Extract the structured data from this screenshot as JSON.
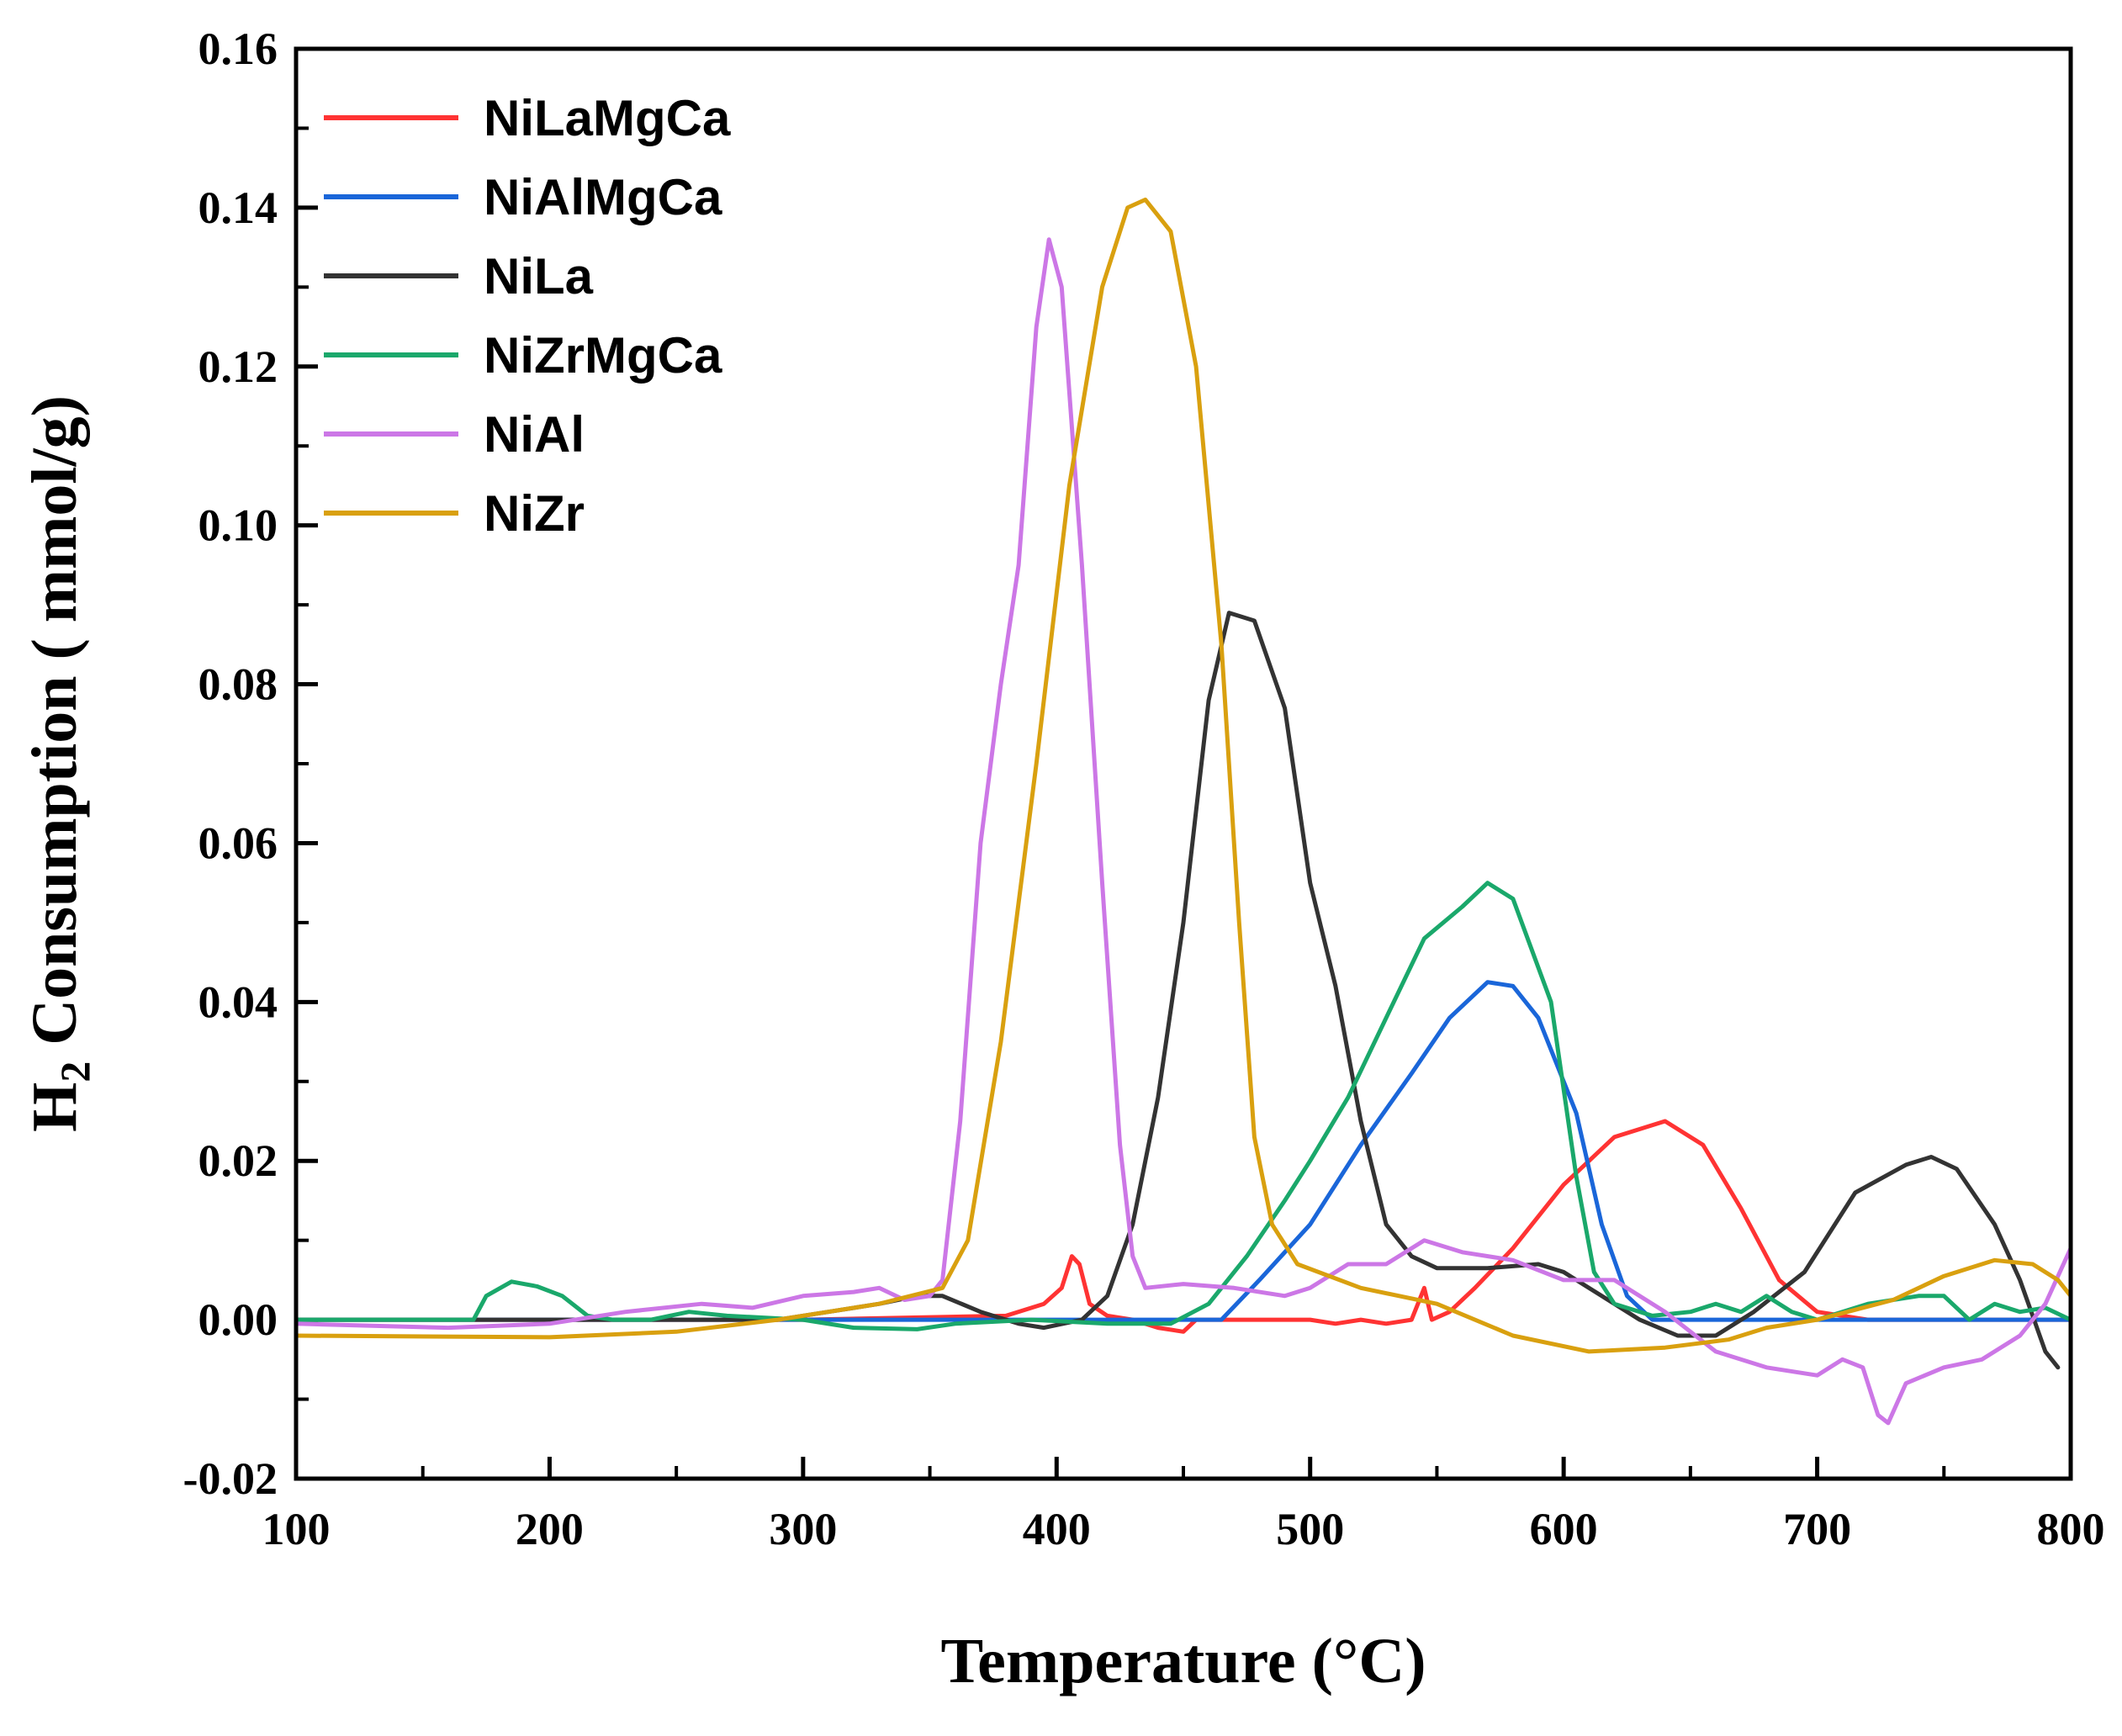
{
  "chart_data": {
    "type": "line",
    "title": "",
    "xlabel": "Temperature (°C)",
    "ylabel_main": "H",
    "ylabel_sub": "2",
    "ylabel_rest": " Consumption ( mmol/g)",
    "xlim": [
      100,
      800
    ],
    "ylim": [
      -0.02,
      0.16
    ],
    "xticks": [
      100,
      200,
      300,
      400,
      500,
      600,
      700,
      800
    ],
    "xtick_labels": [
      "100",
      "200",
      "300",
      "400",
      "500",
      "600",
      "700",
      "800"
    ],
    "yticks": [
      -0.02,
      0.0,
      0.02,
      0.04,
      0.06,
      0.08,
      0.1,
      0.12,
      0.14,
      0.16
    ],
    "ytick_labels": [
      "-0.02",
      "0.00",
      "0.02",
      "0.04",
      "0.06",
      "0.08",
      "0.10",
      "0.12",
      "0.14",
      "0.16"
    ],
    "legend_position": "top-left",
    "series": [
      {
        "name": "NiLaMgCa",
        "color": "#ff3333",
        "points": [
          [
            100,
            0
          ],
          [
            300,
            0
          ],
          [
            380,
            0.0005
          ],
          [
            395,
            0.002
          ],
          [
            402,
            0.004
          ],
          [
            406,
            0.008
          ],
          [
            409,
            0.007
          ],
          [
            413,
            0.002
          ],
          [
            420,
            0.0005
          ],
          [
            430,
            0
          ],
          [
            440,
            -0.001
          ],
          [
            450,
            -0.0015
          ],
          [
            455,
            0
          ],
          [
            500,
            0
          ],
          [
            510,
            -0.0005
          ],
          [
            520,
            0
          ],
          [
            530,
            -0.0005
          ],
          [
            540,
            0
          ],
          [
            545,
            0.004
          ],
          [
            548,
            0
          ],
          [
            555,
            0.001
          ],
          [
            565,
            0.004
          ],
          [
            580,
            0.009
          ],
          [
            600,
            0.017
          ],
          [
            620,
            0.023
          ],
          [
            640,
            0.025
          ],
          [
            655,
            0.022
          ],
          [
            670,
            0.014
          ],
          [
            685,
            0.005
          ],
          [
            700,
            0.001
          ],
          [
            720,
            0
          ],
          [
            800,
            0
          ]
        ]
      },
      {
        "name": "NiAlMgCa",
        "color": "#1a66d9",
        "points": [
          [
            100,
            0
          ],
          [
            460,
            0
          ],
          [
            465,
            0
          ],
          [
            480,
            0.005
          ],
          [
            500,
            0.012
          ],
          [
            520,
            0.022
          ],
          [
            540,
            0.031
          ],
          [
            555,
            0.038
          ],
          [
            570,
            0.0425
          ],
          [
            580,
            0.042
          ],
          [
            590,
            0.038
          ],
          [
            605,
            0.026
          ],
          [
            615,
            0.012
          ],
          [
            625,
            0.003
          ],
          [
            635,
            0
          ],
          [
            800,
            0
          ]
        ]
      },
      {
        "name": "NiLa",
        "color": "#333333",
        "points": [
          [
            100,
            0
          ],
          [
            290,
            0
          ],
          [
            310,
            0.001
          ],
          [
            330,
            0.002
          ],
          [
            345,
            0.003
          ],
          [
            355,
            0.003
          ],
          [
            370,
            0.001
          ],
          [
            385,
            -0.0005
          ],
          [
            395,
            -0.001
          ],
          [
            410,
            0
          ],
          [
            420,
            0.003
          ],
          [
            430,
            0.012
          ],
          [
            440,
            0.028
          ],
          [
            450,
            0.05
          ],
          [
            460,
            0.078
          ],
          [
            468,
            0.089
          ],
          [
            478,
            0.088
          ],
          [
            490,
            0.077
          ],
          [
            500,
            0.055
          ],
          [
            510,
            0.042
          ],
          [
            520,
            0.025
          ],
          [
            530,
            0.012
          ],
          [
            540,
            0.008
          ],
          [
            550,
            0.0065
          ],
          [
            570,
            0.0065
          ],
          [
            590,
            0.007
          ],
          [
            600,
            0.006
          ],
          [
            615,
            0.003
          ],
          [
            630,
            0
          ],
          [
            645,
            -0.002
          ],
          [
            660,
            -0.002
          ],
          [
            675,
            0.001
          ],
          [
            695,
            0.006
          ],
          [
            715,
            0.016
          ],
          [
            735,
            0.0195
          ],
          [
            745,
            0.0205
          ],
          [
            755,
            0.019
          ],
          [
            770,
            0.012
          ],
          [
            780,
            0.005
          ],
          [
            790,
            -0.004
          ],
          [
            795,
            -0.006
          ]
        ]
      },
      {
        "name": "NiZrMgCa",
        "color": "#1aa86b",
        "points": [
          [
            100,
            0
          ],
          [
            170,
            0
          ],
          [
            175,
            0.003
          ],
          [
            185,
            0.0048
          ],
          [
            195,
            0.0042
          ],
          [
            205,
            0.003
          ],
          [
            215,
            0.0005
          ],
          [
            225,
            0
          ],
          [
            240,
            0
          ],
          [
            255,
            0.001
          ],
          [
            270,
            0.0005
          ],
          [
            300,
            0
          ],
          [
            320,
            -0.001
          ],
          [
            345,
            -0.0012
          ],
          [
            360,
            -0.0005
          ],
          [
            390,
            0
          ],
          [
            420,
            -0.0005
          ],
          [
            445,
            -0.0005
          ],
          [
            460,
            0.002
          ],
          [
            475,
            0.008
          ],
          [
            490,
            0.015
          ],
          [
            500,
            0.02
          ],
          [
            515,
            0.028
          ],
          [
            530,
            0.038
          ],
          [
            545,
            0.048
          ],
          [
            560,
            0.052
          ],
          [
            570,
            0.055
          ],
          [
            580,
            0.053
          ],
          [
            595,
            0.04
          ],
          [
            605,
            0.018
          ],
          [
            612,
            0.006
          ],
          [
            620,
            0.002
          ],
          [
            635,
            0.0005
          ],
          [
            650,
            0.001
          ],
          [
            660,
            0.002
          ],
          [
            670,
            0.001
          ],
          [
            680,
            0.003
          ],
          [
            690,
            0.001
          ],
          [
            700,
            0
          ],
          [
            720,
            0.002
          ],
          [
            740,
            0.003
          ],
          [
            750,
            0.003
          ],
          [
            760,
            0
          ],
          [
            770,
            0.002
          ],
          [
            780,
            0.001
          ],
          [
            790,
            0.0015
          ],
          [
            800,
            0
          ]
        ]
      },
      {
        "name": "NiAl",
        "color": "#cc77e6",
        "points": [
          [
            100,
            -0.0005
          ],
          [
            160,
            -0.001
          ],
          [
            200,
            -0.0005
          ],
          [
            230,
            0.001
          ],
          [
            260,
            0.002
          ],
          [
            280,
            0.0015
          ],
          [
            300,
            0.003
          ],
          [
            320,
            0.0035
          ],
          [
            330,
            0.004
          ],
          [
            340,
            0.0025
          ],
          [
            350,
            0.003
          ],
          [
            355,
            0.005
          ],
          [
            362,
            0.025
          ],
          [
            370,
            0.06
          ],
          [
            378,
            0.08
          ],
          [
            385,
            0.095
          ],
          [
            392,
            0.125
          ],
          [
            397,
            0.136
          ],
          [
            402,
            0.13
          ],
          [
            410,
            0.095
          ],
          [
            418,
            0.055
          ],
          [
            425,
            0.022
          ],
          [
            430,
            0.008
          ],
          [
            435,
            0.004
          ],
          [
            450,
            0.0045
          ],
          [
            470,
            0.004
          ],
          [
            490,
            0.003
          ],
          [
            500,
            0.004
          ],
          [
            515,
            0.007
          ],
          [
            530,
            0.007
          ],
          [
            545,
            0.01
          ],
          [
            560,
            0.0085
          ],
          [
            580,
            0.0075
          ],
          [
            600,
            0.005
          ],
          [
            620,
            0.005
          ],
          [
            640,
            0.001
          ],
          [
            660,
            -0.004
          ],
          [
            680,
            -0.006
          ],
          [
            700,
            -0.007
          ],
          [
            710,
            -0.005
          ],
          [
            718,
            -0.006
          ],
          [
            724,
            -0.012
          ],
          [
            728,
            -0.013
          ],
          [
            735,
            -0.008
          ],
          [
            750,
            -0.006
          ],
          [
            765,
            -0.005
          ],
          [
            780,
            -0.002
          ],
          [
            790,
            0.002
          ],
          [
            800,
            0.009
          ]
        ]
      },
      {
        "name": "NiZr",
        "color": "#d9a00f",
        "points": [
          [
            100,
            -0.002
          ],
          [
            200,
            -0.0022
          ],
          [
            250,
            -0.0015
          ],
          [
            290,
            0
          ],
          [
            330,
            0.002
          ],
          [
            355,
            0.004
          ],
          [
            365,
            0.01
          ],
          [
            378,
            0.035
          ],
          [
            392,
            0.07
          ],
          [
            405,
            0.105
          ],
          [
            418,
            0.13
          ],
          [
            428,
            0.14
          ],
          [
            435,
            0.141
          ],
          [
            445,
            0.137
          ],
          [
            455,
            0.12
          ],
          [
            465,
            0.085
          ],
          [
            472,
            0.05
          ],
          [
            478,
            0.023
          ],
          [
            485,
            0.012
          ],
          [
            495,
            0.007
          ],
          [
            520,
            0.004
          ],
          [
            550,
            0.002
          ],
          [
            580,
            -0.002
          ],
          [
            610,
            -0.004
          ],
          [
            640,
            -0.0035
          ],
          [
            665,
            -0.0025
          ],
          [
            680,
            -0.001
          ],
          [
            700,
            0
          ],
          [
            730,
            0.0025
          ],
          [
            750,
            0.0055
          ],
          [
            770,
            0.0075
          ],
          [
            785,
            0.007
          ],
          [
            795,
            0.005
          ],
          [
            800,
            0.003
          ]
        ]
      }
    ]
  }
}
